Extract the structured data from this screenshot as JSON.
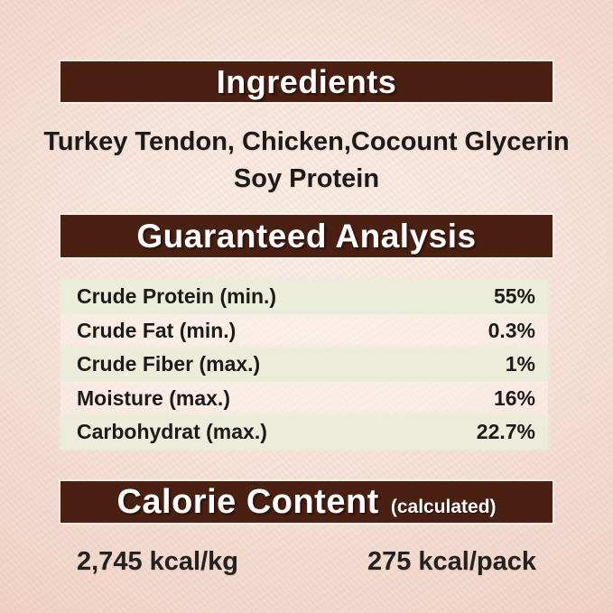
{
  "colors": {
    "bar_background": "#4a2012",
    "bar_text": "#ffffff",
    "page_center": "#f9ece5",
    "page_edge": "#efd1c4",
    "row_band": "#ebecd9",
    "body_text": "#1d1b1a"
  },
  "ingredients": {
    "title": "Ingredients",
    "line1": "Turkey Tendon, Chicken,Cocount Glycerin",
    "line2": "Soy Protein"
  },
  "guaranteed_analysis": {
    "title": "Guaranteed Analysis",
    "rows": [
      {
        "label": "Crude Protein (min.)",
        "value": "55%"
      },
      {
        "label": "Crude Fat (min.)",
        "value": "0.3%"
      },
      {
        "label": "Crude Fiber (max.)",
        "value": "1%"
      },
      {
        "label": "Moisture (max.)",
        "value": "16%"
      },
      {
        "label": "Carbohydrat (max.)",
        "value": "22.7%"
      }
    ]
  },
  "calorie_content": {
    "title": "Calorie Content",
    "subtitle": "(calculated)",
    "kcal_per_kg": "2,745 kcal/kg",
    "kcal_per_pack": "275 kcal/pack"
  }
}
